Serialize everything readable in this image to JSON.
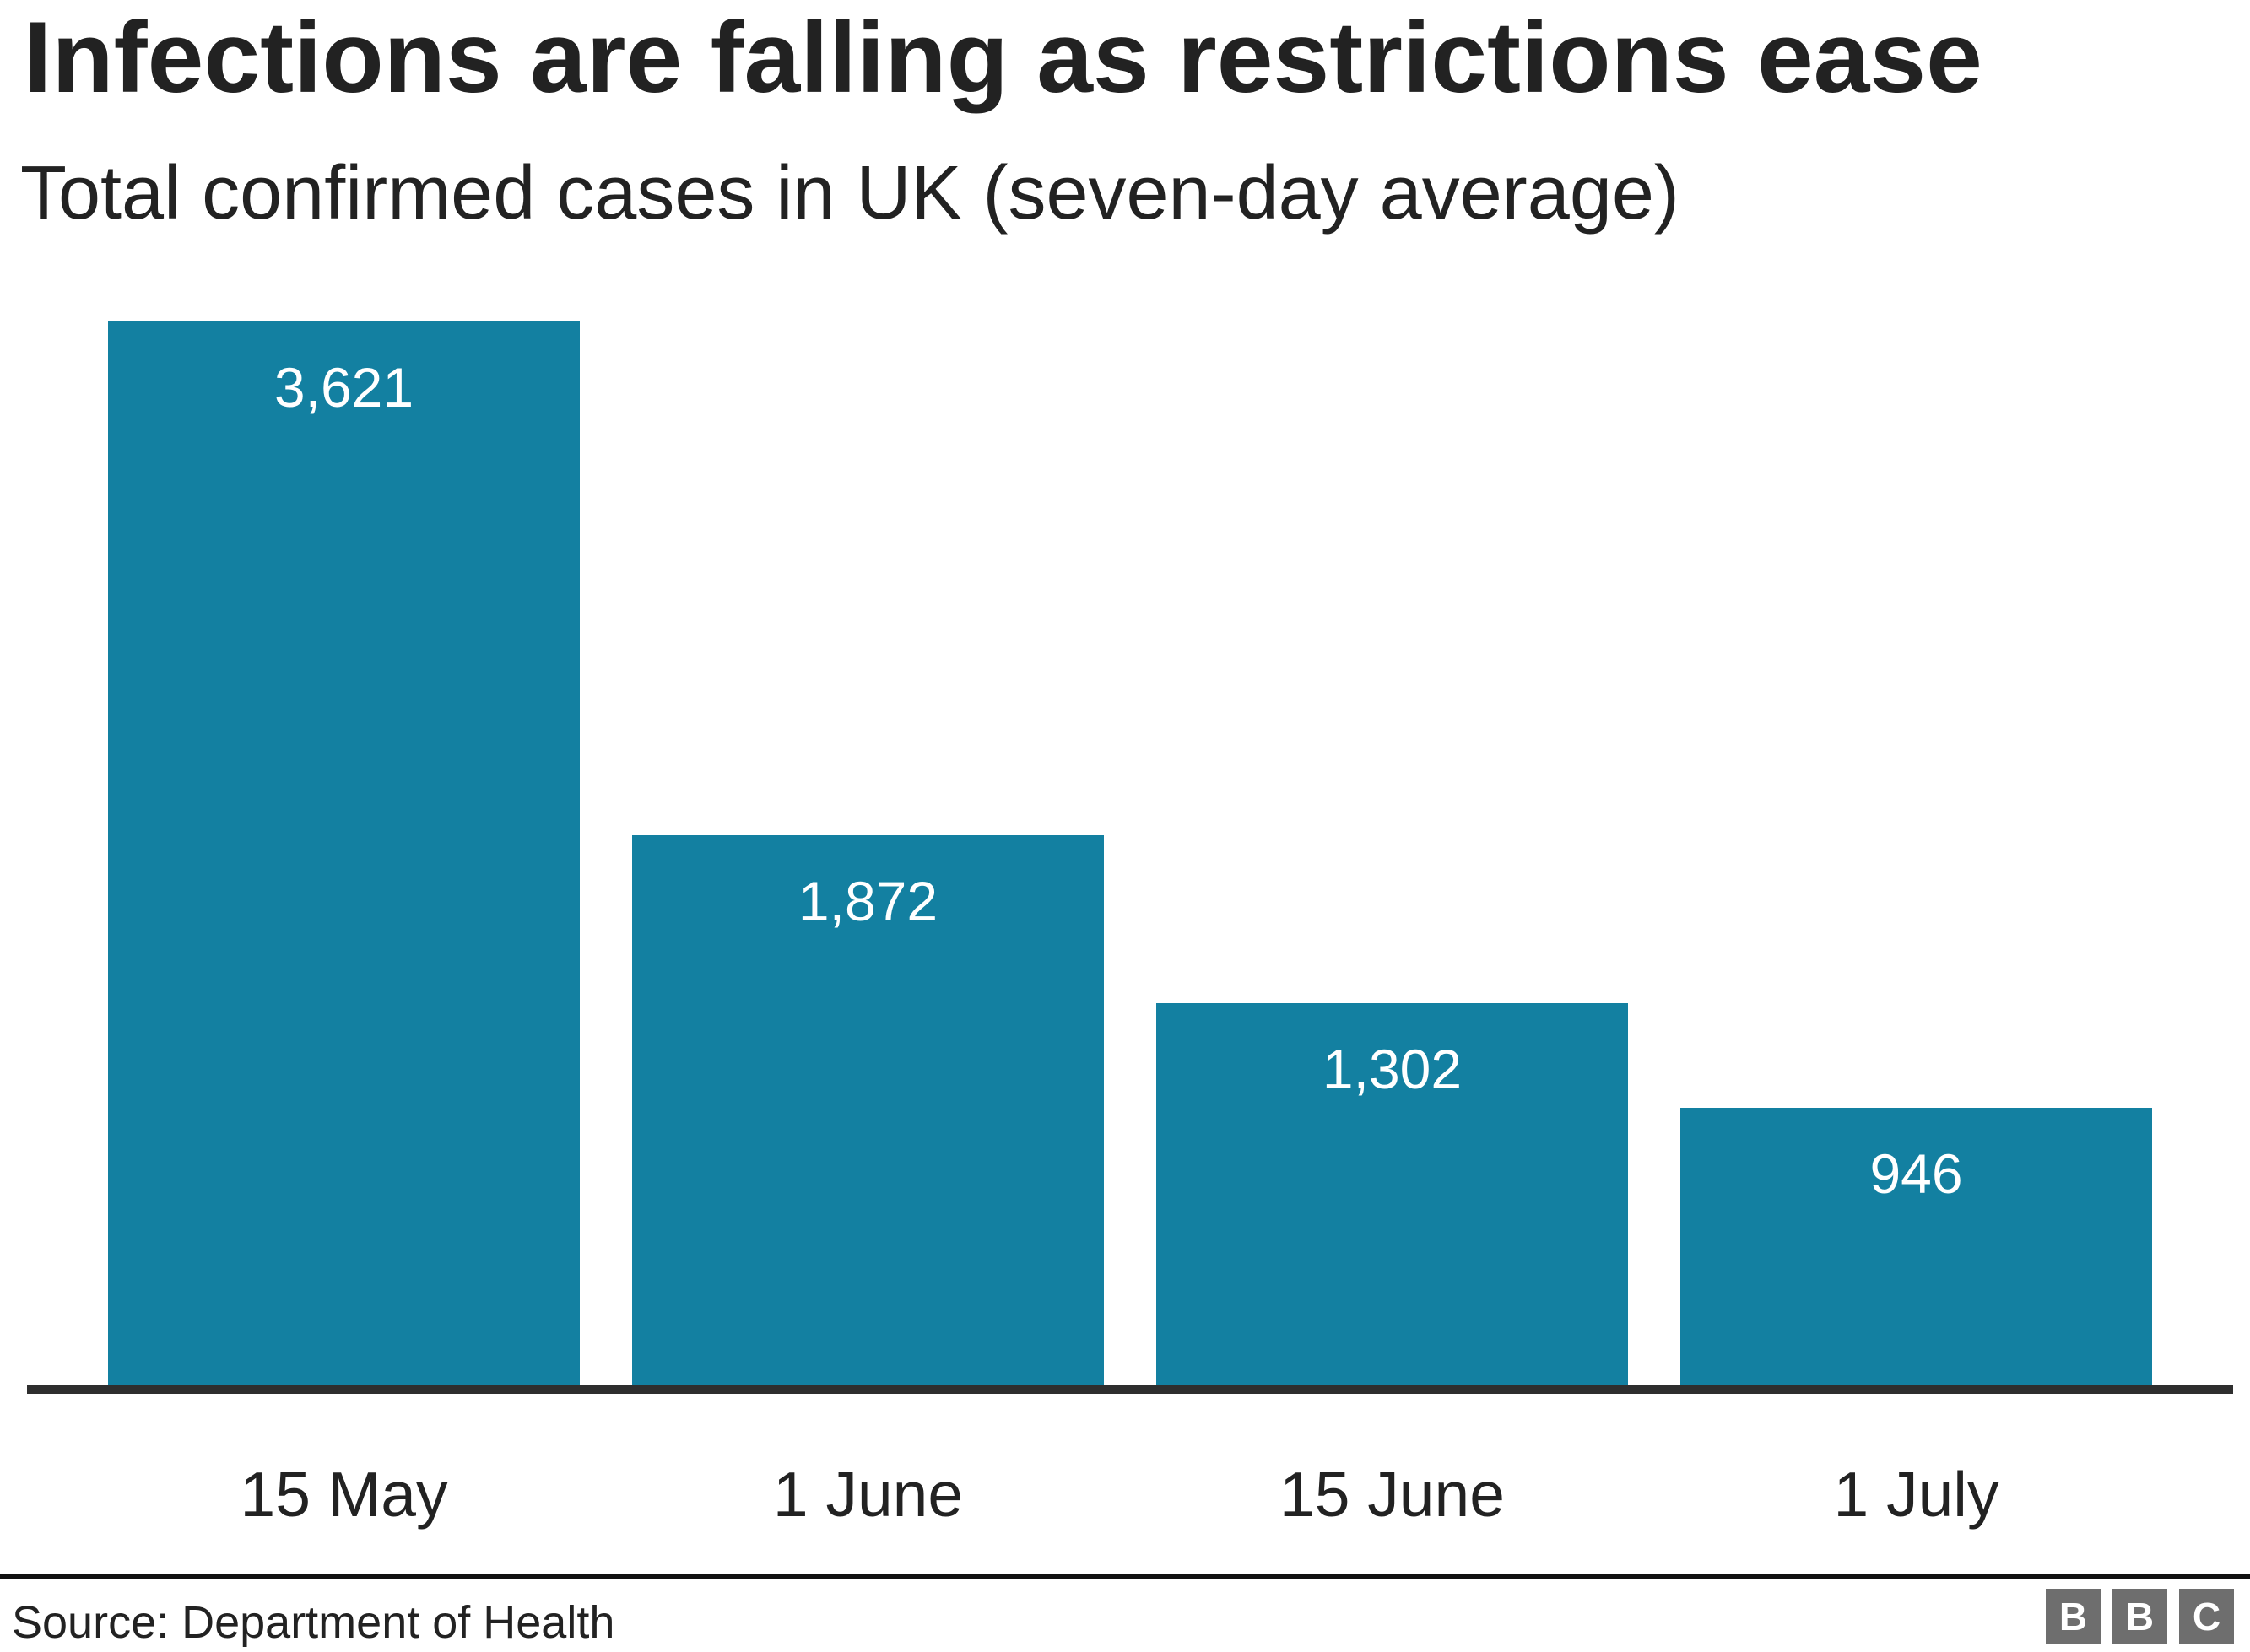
{
  "header": {
    "title": "Infections are falling as restrictions ease",
    "subtitle": "Total confirmed cases in UK (seven-day average)"
  },
  "footer": {
    "source": "Source: Department of Health",
    "logo_letters": [
      "B",
      "B",
      "C"
    ]
  },
  "colors": {
    "bar": "#1380A1",
    "axis_line": "#2e2e2e",
    "text": "#222222",
    "bar_label_text": "#ffffff",
    "logo_block": "#6e6e6e",
    "background": "#ffffff"
  },
  "chart_data": {
    "type": "bar",
    "categories": [
      "15 May",
      "1 June",
      "15 June",
      "1 July"
    ],
    "values": [
      3621,
      1872,
      1302,
      946
    ],
    "value_labels": [
      "3,621",
      "1,872",
      "1,302",
      "946"
    ],
    "title": "Infections are falling as restrictions ease",
    "subtitle": "Total confirmed cases in UK (seven-day average)",
    "xlabel": "",
    "ylabel": "",
    "ylim": [
      0,
      3700
    ],
    "grid": false,
    "legend": false,
    "bar_label_position": "inside-top",
    "source": "Source: Department of Health"
  }
}
